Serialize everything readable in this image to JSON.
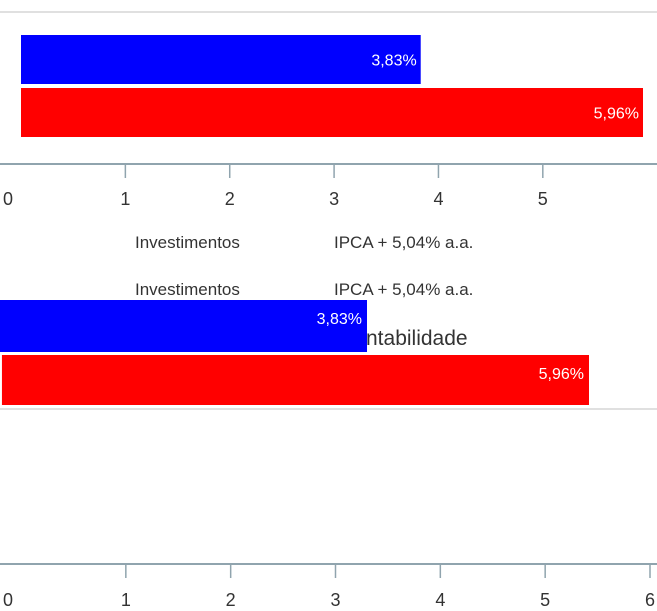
{
  "legend": {
    "series_a_label": "Investimentos",
    "series_b_label": "IPCA + 5,04% a.a."
  },
  "title_fragment": "ntabilidade",
  "colors": {
    "series_a": "#0000ff",
    "series_b": "#ff0000",
    "axis": "#90a4ae",
    "grid": "#e0e0e0",
    "text": "#333333"
  },
  "chart_data": [
    {
      "type": "bar",
      "orientation": "horizontal",
      "series": [
        {
          "name": "Investimentos",
          "values": [
            3.83
          ],
          "labels": [
            "3,83%"
          ]
        },
        {
          "name": "IPCA + 5,04% a.a.",
          "values": [
            5.96
          ],
          "labels": [
            "5,96%"
          ]
        }
      ],
      "xlim": [
        0,
        5.96
      ],
      "xticks": [
        "0",
        "1",
        "2",
        "3",
        "4",
        "5"
      ],
      "grid": true
    },
    {
      "type": "bar",
      "orientation": "horizontal",
      "series": [
        {
          "name": "Investimentos",
          "values": [
            3.83
          ],
          "labels": [
            "3,83%"
          ]
        },
        {
          "name": "IPCA + 5,04% a.a.",
          "values": [
            5.96
          ],
          "labels": [
            "5,96%"
          ]
        }
      ],
      "xlim": [
        0,
        6
      ],
      "xticks": [
        "0",
        "1",
        "2",
        "3",
        "4",
        "5",
        "6"
      ],
      "grid": true
    }
  ]
}
